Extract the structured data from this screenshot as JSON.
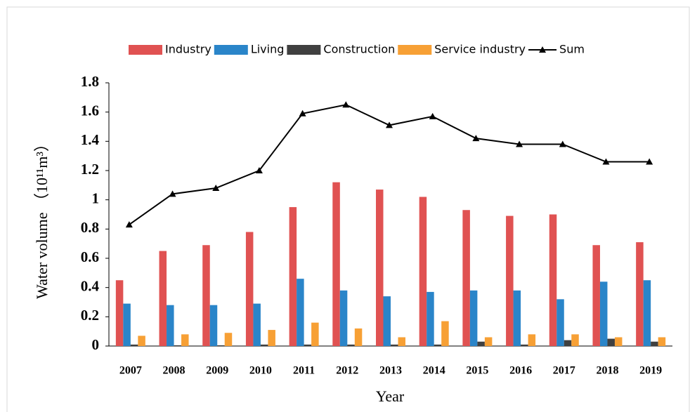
{
  "chart_data": {
    "type": "bar",
    "categories": [
      "2007",
      "2008",
      "2009",
      "2010",
      "2011",
      "2012",
      "2013",
      "2014",
      "2015",
      "2016",
      "2017",
      "2018",
      "2019"
    ],
    "series": [
      {
        "name": "Industry",
        "color": "#e05252",
        "values": [
          0.45,
          0.65,
          0.69,
          0.78,
          0.95,
          1.12,
          1.07,
          1.02,
          0.93,
          0.89,
          0.9,
          0.69,
          0.71
        ]
      },
      {
        "name": "Living",
        "color": "#2a85c9",
        "values": [
          0.29,
          0.28,
          0.28,
          0.29,
          0.46,
          0.38,
          0.34,
          0.37,
          0.38,
          0.38,
          0.32,
          0.44,
          0.45
        ]
      },
      {
        "name": "Construction",
        "color": "#404040",
        "values": [
          0.01,
          0.005,
          0.005,
          0.01,
          0.01,
          0.01,
          0.01,
          0.01,
          0.03,
          0.01,
          0.04,
          0.05,
          0.03
        ]
      },
      {
        "name": "Service industry",
        "color": "#f7a035",
        "values": [
          0.07,
          0.08,
          0.09,
          0.11,
          0.16,
          0.12,
          0.06,
          0.17,
          0.06,
          0.08,
          0.08,
          0.06,
          0.06
        ]
      },
      {
        "name": "Sum",
        "color": "#000000",
        "type": "line",
        "values": [
          0.83,
          1.04,
          1.08,
          1.2,
          1.59,
          1.65,
          1.51,
          1.57,
          1.42,
          1.38,
          1.38,
          1.26,
          1.26
        ]
      }
    ],
    "ylabel": "Water volume （10¹¹m³）",
    "xlabel": "Year",
    "ylim": [
      0,
      1.8
    ],
    "yticks": [
      0,
      0.2,
      0.4,
      0.6,
      0.8,
      1,
      1.2,
      1.4,
      1.6,
      1.8
    ],
    "legend": "top"
  }
}
